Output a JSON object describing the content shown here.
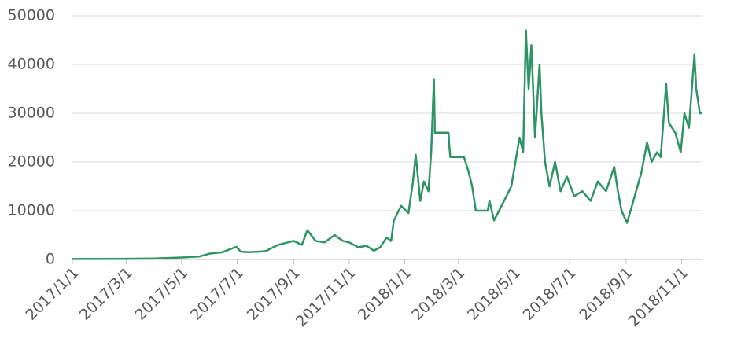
{
  "chart_data": {
    "type": "line",
    "color": "#2e9466",
    "grid": true,
    "ylim": [
      0,
      50000
    ],
    "yticks": [
      0,
      10000,
      20000,
      30000,
      40000,
      50000
    ],
    "xlim": [
      "2017/1/1",
      "2018/11/23"
    ],
    "xticks": [
      "2017/1/1",
      "2017/3/1",
      "2017/5/1",
      "2017/7/1",
      "2017/9/1",
      "2017/11/1",
      "2018/1/1",
      "2018/3/1",
      "2018/5/1",
      "2018/7/1",
      "2018/9/1",
      "2018/11/1"
    ],
    "x": [
      "2017/1/1",
      "2017/2/1",
      "2017/3/1",
      "2017/4/1",
      "2017/5/1",
      "2017/5/20",
      "2017/6/1",
      "2017/6/15",
      "2017/6/30",
      "2017/7/5",
      "2017/7/15",
      "2017/8/1",
      "2017/8/15",
      "2017/9/1",
      "2017/9/10",
      "2017/9/16",
      "2017/9/25",
      "2017/10/5",
      "2017/10/16",
      "2017/10/25",
      "2017/11/1",
      "2017/11/11",
      "2017/11/20",
      "2017/11/28",
      "2017/12/5",
      "2017/12/12",
      "2017/12/17",
      "2017/12/20",
      "2017/12/28",
      "2018/1/5",
      "2018/1/10",
      "2018/1/13",
      "2018/1/18",
      "2018/1/22",
      "2018/1/27",
      "2018/1/30",
      "2018/2/2",
      "2018/2/3",
      "2018/2/18",
      "2018/2/19",
      "2018/2/20",
      "2018/3/7",
      "2018/3/12",
      "2018/3/16",
      "2018/3/20",
      "2018/4/2",
      "2018/4/4",
      "2018/4/9",
      "2018/4/20",
      "2018/4/28",
      "2018/5/7",
      "2018/5/11",
      "2018/5/14",
      "2018/5/17",
      "2018/5/20",
      "2018/5/24",
      "2018/5/29",
      "2018/5/31",
      "2018/6/4",
      "2018/6/9",
      "2018/6/15",
      "2018/6/21",
      "2018/6/28",
      "2018/7/6",
      "2018/7/15",
      "2018/7/24",
      "2018/8/1",
      "2018/8/10",
      "2018/8/19",
      "2018/8/23",
      "2018/8/27",
      "2018/9/2",
      "2018/9/9",
      "2018/9/18",
      "2018/9/24",
      "2018/9/29",
      "2018/10/5",
      "2018/10/9",
      "2018/10/15",
      "2018/10/18",
      "2018/10/25",
      "2018/10/31",
      "2018/11/4",
      "2018/11/9",
      "2018/11/13",
      "2018/11/15",
      "2018/11/17",
      "2018/11/21",
      "2018/11/23"
    ],
    "values": [
      100,
      120,
      150,
      200,
      400,
      600,
      1200,
      1500,
      2600,
      1600,
      1500,
      1700,
      3000,
      3800,
      3000,
      6000,
      3800,
      3500,
      5000,
      3800,
      3500,
      2500,
      2800,
      1800,
      2500,
      4500,
      3800,
      8000,
      11000,
      9500,
      16000,
      21500,
      12000,
      16000,
      14000,
      22000,
      37000,
      26000,
      26000,
      23000,
      21000,
      21000,
      18000,
      15000,
      10000,
      10000,
      12000,
      8000,
      12000,
      15000,
      25000,
      22000,
      47000,
      35000,
      44000,
      25000,
      40000,
      30000,
      20000,
      15000,
      20000,
      14000,
      17000,
      13000,
      14000,
      12000,
      16000,
      14000,
      19000,
      14000,
      10000,
      7500,
      12000,
      18000,
      24000,
      20000,
      22000,
      21000,
      36000,
      28000,
      26000,
      22000,
      30000,
      27000,
      37000,
      42000,
      35000,
      30000,
      30000
    ]
  }
}
